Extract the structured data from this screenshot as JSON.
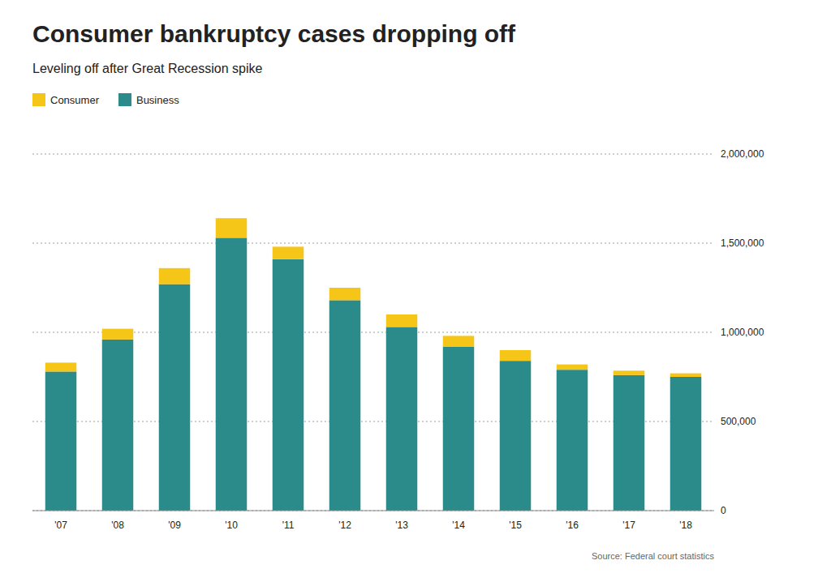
{
  "chart_data": {
    "type": "bar",
    "title": "Consumer bankruptcy cases dropping off",
    "subtitle": "Leveling off after Great Recession spike",
    "source": "Source: Federal court statistics",
    "categories": [
      "'07",
      "'08",
      "'09",
      "'10",
      "'11",
      "'12",
      "'13",
      "'14",
      "'15",
      "'16",
      "'17",
      "'18"
    ],
    "series": [
      {
        "name": "Business",
        "color": "#2b8a8a",
        "values": [
          780000,
          960000,
          1270000,
          1530000,
          1410000,
          1180000,
          1030000,
          920000,
          840000,
          790000,
          760000,
          750000
        ]
      },
      {
        "name": "Consumer",
        "color": "#f5c518",
        "values": [
          50000,
          60000,
          90000,
          110000,
          70000,
          70000,
          70000,
          60000,
          60000,
          30000,
          25000,
          20000
        ]
      }
    ],
    "stacked": true,
    "ylim": [
      0,
      2000000
    ],
    "yticks": [
      0,
      {
        "value": 500000,
        "label": "500,000"
      },
      {
        "value": 1000000,
        "label": "1,000,000"
      },
      {
        "value": 1500000,
        "label": "1,500,000"
      },
      {
        "value": 2000000,
        "label": "2,000,000"
      }
    ],
    "grid": true,
    "legend": "upper left"
  }
}
